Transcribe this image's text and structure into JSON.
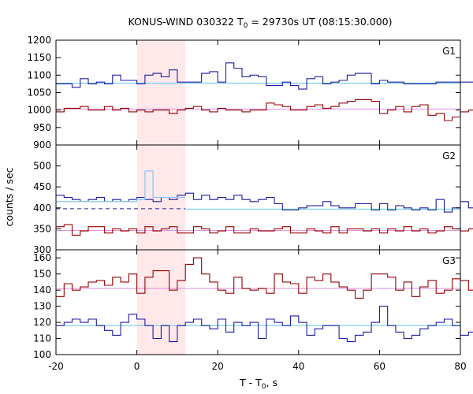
{
  "title": {
    "main": "KONUS-WIND 030322 T",
    "sub": "0",
    "rest": " = 29730s UT (08:15:30.000)"
  },
  "xlabel": {
    "main": "T - T",
    "sub": "0",
    "rest": ", s"
  },
  "ylabel": "counts / sec",
  "colors": {
    "blue": "#1c1ca0",
    "red": "#960000",
    "bg_line_blue": "#5ec8f0",
    "bg_line_red": "#e090e0",
    "highlight_blue": "#8ec8f2",
    "interval_fill": "#ffe8ea"
  },
  "chart_data": {
    "type": "line",
    "style": "step",
    "x_range": [
      -20,
      80
    ],
    "x_ticks": [
      -20,
      0,
      20,
      40,
      60,
      80
    ],
    "x_tick_labels": [
      "-20",
      "0",
      "20",
      "40",
      "60",
      "80"
    ],
    "bin_width": 2.0,
    "shaded_interval": [
      0,
      12
    ],
    "grid": false,
    "legend": "none",
    "panels": [
      {
        "name": "G1",
        "ylim": [
          900,
          1200
        ],
        "y_ticks": [
          900,
          950,
          1000,
          1050,
          1100,
          1150,
          1200
        ],
        "y_tick_labels": [
          "900",
          "950",
          "1000",
          "1050",
          "1100",
          "1150",
          "1200"
        ],
        "series": [
          {
            "color": "blue",
            "x_start": -20,
            "values": [
              1075,
              1075,
              1065,
              1090,
              1075,
              1080,
              1075,
              1100,
              1085,
              1085,
              1075,
              1100,
              1105,
              1095,
              1115,
              1080,
              1080,
              1080,
              1105,
              1110,
              1080,
              1135,
              1120,
              1095,
              1100,
              1095,
              1070,
              1070,
              1080,
              1070,
              1060,
              1090,
              1095,
              1075,
              1080,
              1085,
              1100,
              1105,
              1105,
              1075,
              1085,
              1080,
              1080,
              1075,
              1075,
              1075,
              1075,
              1080,
              1080,
              1080,
              1080,
              1080,
              1080,
              1090,
              1100,
              1100,
              1090,
              1115,
              1145,
              1135,
              1120,
              1095,
              1110,
              1085,
              1095,
              1090,
              1095,
              1090,
              1075,
              1085,
              1075,
              1105,
              1045,
              1090,
              1080,
              1060,
              1070,
              1075,
              1065,
              1075
            ]
          },
          {
            "color": "red",
            "x_start": -20,
            "values": [
              995,
              1005,
              1005,
              1010,
              1000,
              1000,
              1010,
              1000,
              1005,
              995,
              1000,
              995,
              1000,
              1000,
              990,
              1000,
              1005,
              1010,
              1000,
              995,
              1005,
              1000,
              1000,
              995,
              1000,
              1000,
              1020,
              1015,
              1010,
              1000,
              1000,
              1010,
              1015,
              1005,
              1010,
              1020,
              1025,
              1030,
              1030,
              1025,
              990,
              1000,
              1010,
              995,
              1010,
              1015,
              985,
              990,
              970,
              980,
              995,
              1000,
              990,
              1005,
              985,
              995,
              1000,
              1005,
              1000,
              1010,
              1010,
              980,
              985,
              985,
              990,
              995,
              985,
              1000,
              1010,
              1015,
              1015,
              1000,
              1005,
              1005,
              1010,
              995,
              1005,
              1000,
              1000,
              1005
            ]
          }
        ],
        "baselines": [
          {
            "color": "bg_line_blue",
            "value": 1077,
            "x_from": -20,
            "x_to": 80
          },
          {
            "color": "bg_line_red",
            "value": 1003,
            "x_from": -20,
            "x_to": 80
          }
        ]
      },
      {
        "name": "G2",
        "ylim": [
          300,
          550
        ],
        "y_ticks": [
          300,
          350,
          400,
          450,
          500
        ],
        "y_tick_labels": [
          "300",
          "350",
          "400",
          "450",
          "500"
        ],
        "series": [
          {
            "color": "blue",
            "x_start": -20,
            "values": [
              430,
              425,
              420,
              415,
              420,
              425,
              415,
              420,
              415,
              420,
              425,
              420,
              415,
              425,
              420,
              430,
              435,
              420,
              430,
              420,
              425,
              420,
              430,
              420,
              415,
              420,
              425,
              410,
              395,
              395,
              400,
              405,
              405,
              415,
              405,
              400,
              400,
              410,
              410,
              395,
              410,
              395,
              405,
              400,
              395,
              400,
              395,
              420,
              390,
              400,
              415,
              400,
              400,
              410,
              395,
              420,
              395,
              395,
              425,
              425,
              420,
              415,
              400,
              390,
              400,
              410,
              405,
              395,
              390,
              390,
              385,
              395,
              390,
              400,
              405,
              410,
              395,
              405,
              400,
              410
            ]
          },
          {
            "color": "red",
            "x_start": -20,
            "values": [
              355,
              360,
              335,
              345,
              355,
              355,
              340,
              350,
              345,
              350,
              340,
              355,
              345,
              350,
              355,
              340,
              340,
              355,
              350,
              340,
              345,
              355,
              340,
              340,
              350,
              345,
              345,
              350,
              355,
              340,
              340,
              350,
              345,
              340,
              355,
              340,
              350,
              350,
              345,
              350,
              340,
              350,
              345,
              355,
              345,
              350,
              340,
              345,
              355,
              350,
              345,
              350,
              345,
              345,
              350,
              340,
              355,
              345,
              350,
              345,
              350,
              340,
              345,
              355,
              345,
              335,
              345,
              355,
              350,
              345,
              340,
              355,
              350,
              345,
              345,
              340,
              350,
              345,
              335,
              340
            ]
          }
        ],
        "highlight_series": {
          "color": "highlight_blue",
          "x": [
            -20,
            0,
            0,
            2,
            2,
            4,
            4,
            12
          ],
          "values": [
            415,
            415,
            420,
            420,
            488,
            488,
            425,
            425
          ]
        },
        "baselines": [
          {
            "color": "bg_line_blue",
            "value": 397,
            "x_from": 12,
            "x_to": 80
          },
          {
            "color": "bg_line_red",
            "value": 346,
            "x_from": -20,
            "x_to": 80
          }
        ],
        "dashed_baseline": {
          "color": "blue",
          "value": 398,
          "x_from": -20,
          "x_to": 12
        }
      },
      {
        "name": "G3",
        "ylim": [
          100,
          165
        ],
        "y_ticks": [
          100,
          110,
          120,
          130,
          140,
          150,
          160
        ],
        "y_tick_labels": [
          "100",
          "110",
          "120",
          "130",
          "140",
          "150",
          "160"
        ],
        "series": [
          {
            "color": "red",
            "x_start": -20,
            "values": [
              136,
              144,
              140,
              142,
              145,
              146,
              143,
              148,
              145,
              150,
              138,
              148,
              152,
              152,
              140,
              146,
              156,
              160,
              150,
              145,
              140,
              138,
              148,
              141,
              140,
              141,
              138,
              150,
              145,
              144,
              138,
              148,
              146,
              150,
              145,
              142,
              140,
              135,
              140,
              150,
              150,
              148,
              140,
              145,
              136,
              142,
              146,
              138,
              140,
              147,
              146,
              140,
              141,
              150,
              152,
              150,
              140,
              138,
              150,
              140,
              124,
              142,
              130,
              140,
              142,
              130,
              150,
              140,
              140,
              148,
              146,
              150,
              144,
              146,
              140,
              138,
              140,
              136,
              142,
              140
            ]
          },
          {
            "color": "blue",
            "x_start": -20,
            "values": [
              118,
              120,
              122,
              120,
              122,
              118,
              115,
              112,
              120,
              125,
              122,
              118,
              110,
              118,
              108,
              118,
              120,
              122,
              118,
              116,
              122,
              114,
              120,
              118,
              120,
              110,
              122,
              120,
              118,
              124,
              120,
              112,
              116,
              118,
              118,
              110,
              108,
              112,
              114,
              120,
              130,
              118,
              114,
              110,
              112,
              116,
              118,
              120,
              122,
              118,
              112,
              114,
              110,
              116,
              118,
              114,
              110,
              108,
              116,
              118,
              112,
              108,
              112,
              118,
              116,
              114,
              110,
              118,
              116,
              112,
              110,
              120,
              122,
              110,
              108,
              116,
              118,
              110,
              112,
              116
            ]
          }
        ],
        "baselines": [
          {
            "color": "bg_line_red",
            "value": 141,
            "x_from": -20,
            "x_to": 80
          },
          {
            "color": "bg_line_blue",
            "value": 118,
            "x_from": -20,
            "x_to": 80
          }
        ]
      }
    ]
  }
}
